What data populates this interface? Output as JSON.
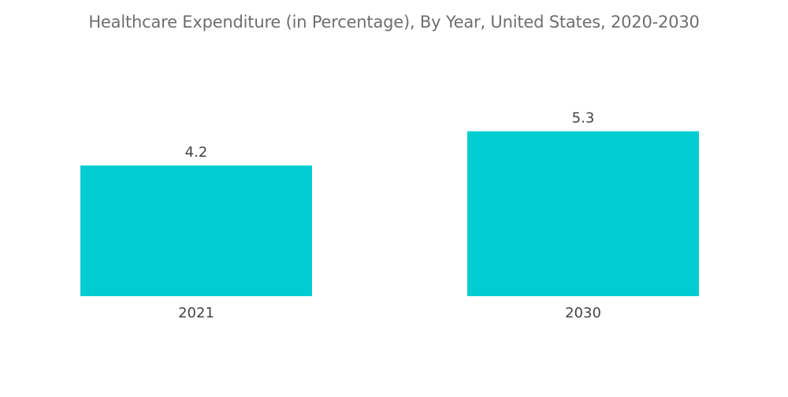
{
  "chart_data": {
    "type": "bar",
    "title": "Healthcare Expenditure (in Percentage), By Year, United States, 2020-2030",
    "xlabel": "",
    "ylabel": "",
    "categories": [
      "2021",
      "2030"
    ],
    "values": [
      4.2,
      5.3
    ],
    "data_labels": [
      "4.2",
      "5.3"
    ],
    "bar_color": "#00ccd2",
    "grid": false,
    "legend": "none"
  }
}
